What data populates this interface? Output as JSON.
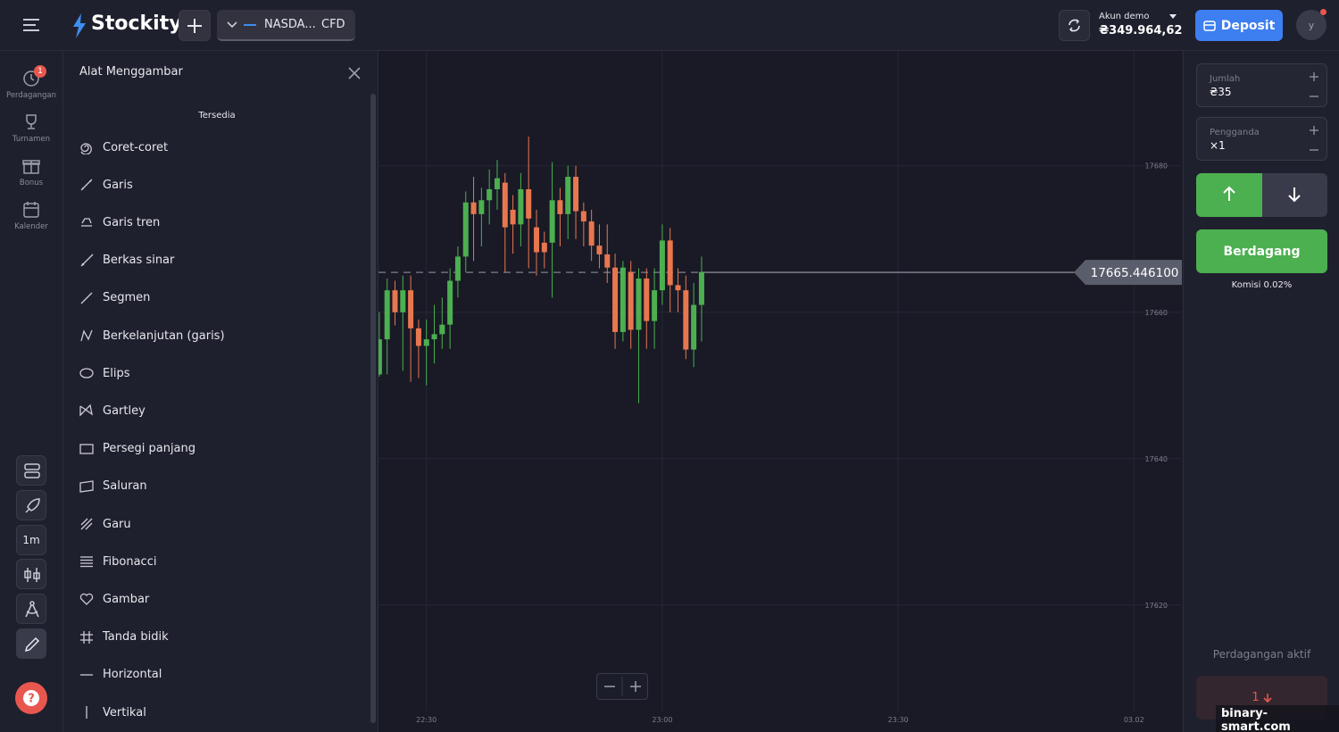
{
  "header": {
    "brand": "Stockity",
    "asset": "NASDA...",
    "asset_type": "CFD",
    "account_label": "Akun demo",
    "balance": "₴349.964,62",
    "deposit": "Deposit",
    "avatar": "y"
  },
  "sidebar": {
    "badge": "1",
    "items": [
      "Perdagangan",
      "Turnamen",
      "Bonus",
      "Kalender"
    ],
    "timeframe": "1m"
  },
  "tools_panel": {
    "title": "Alat Menggambar",
    "section": "Tersedia",
    "tools": [
      "Coret-coret",
      "Garis",
      "Garis tren",
      "Berkas sinar",
      "Segmen",
      "Berkelanjutan (garis)",
      "Elips",
      "Gartley",
      "Persegi panjang",
      "Saluran",
      "Garu",
      "Fibonacci",
      "Gambar",
      "Tanda bidik",
      "Horizontal",
      "Vertikal"
    ]
  },
  "chart_data": {
    "type": "candlestick",
    "up_color": "#4caf50",
    "down_color": "#e8774f",
    "ylim": [
      17602.9,
      17695.7
    ],
    "yticks": [
      17620,
      17640,
      17660,
      17680
    ],
    "xlim": [
      23.9,
      126.1
    ],
    "xticks": [
      {
        "value": 30,
        "label": "22:30"
      },
      {
        "value": 60,
        "label": "23:00"
      },
      {
        "value": 90,
        "label": "23:30"
      },
      {
        "value": 120,
        "label": "03.02"
      }
    ],
    "grid": true,
    "price": {
      "value": 17665.4461,
      "label": "17665.446100"
    },
    "candles": [
      {
        "x": 24,
        "o": 17651.5,
        "h": 17660,
        "l": 17651.2,
        "c": 17656.3
      },
      {
        "x": 25,
        "o": 17656.3,
        "h": 17664.6,
        "l": 17651.5,
        "c": 17663
      },
      {
        "x": 26,
        "o": 17663,
        "h": 17664.3,
        "l": 17658.2,
        "c": 17660
      },
      {
        "x": 27,
        "o": 17660,
        "h": 17665,
        "l": 17652,
        "c": 17663
      },
      {
        "x": 28,
        "o": 17663,
        "h": 17665,
        "l": 17650.5,
        "c": 17657.8
      },
      {
        "x": 29,
        "o": 17657.8,
        "h": 17659,
        "l": 17651,
        "c": 17655.4
      },
      {
        "x": 30,
        "o": 17655.4,
        "h": 17659,
        "l": 17650,
        "c": 17656.3
      },
      {
        "x": 31,
        "o": 17656.3,
        "h": 17661,
        "l": 17653,
        "c": 17657
      },
      {
        "x": 32,
        "o": 17657,
        "h": 17662,
        "l": 17655,
        "c": 17658.3
      },
      {
        "x": 33,
        "o": 17658.3,
        "h": 17666,
        "l": 17655,
        "c": 17664.3
      },
      {
        "x": 34,
        "o": 17664.3,
        "h": 17669,
        "l": 17662,
        "c": 17667.6
      },
      {
        "x": 35,
        "o": 17667.6,
        "h": 17676.5,
        "l": 17665.5,
        "c": 17675
      },
      {
        "x": 36,
        "o": 17675,
        "h": 17678.5,
        "l": 17667,
        "c": 17673.4
      },
      {
        "x": 37,
        "o": 17673.4,
        "h": 17677,
        "l": 17669,
        "c": 17675.3
      },
      {
        "x": 38,
        "o": 17675.3,
        "h": 17679.5,
        "l": 17672,
        "c": 17676.8
      },
      {
        "x": 39,
        "o": 17676.8,
        "h": 17680.8,
        "l": 17674,
        "c": 17678.3
      },
      {
        "x": 40,
        "o": 17677.7,
        "h": 17679,
        "l": 17665.5,
        "c": 17671.6
      },
      {
        "x": 41,
        "o": 17674,
        "h": 17676,
        "l": 17668,
        "c": 17672
      },
      {
        "x": 42,
        "o": 17672,
        "h": 17679,
        "l": 17669,
        "c": 17676.8
      },
      {
        "x": 43,
        "o": 17676.8,
        "h": 17684,
        "l": 17666,
        "c": 17672.8
      },
      {
        "x": 44,
        "o": 17671.6,
        "h": 17674,
        "l": 17665,
        "c": 17668.2
      },
      {
        "x": 45,
        "o": 17669.5,
        "h": 17671,
        "l": 17666,
        "c": 17668.2
      },
      {
        "x": 46,
        "o": 17669.5,
        "h": 17680.5,
        "l": 17662,
        "c": 17675.3
      },
      {
        "x": 47,
        "o": 17675.3,
        "h": 17677,
        "l": 17669,
        "c": 17673.4
      },
      {
        "x": 48,
        "o": 17673.4,
        "h": 17680,
        "l": 17670,
        "c": 17678.5
      },
      {
        "x": 49,
        "o": 17678.5,
        "h": 17680,
        "l": 17670,
        "c": 17673.8
      },
      {
        "x": 50,
        "o": 17673.8,
        "h": 17675,
        "l": 17669,
        "c": 17672.4
      },
      {
        "x": 51,
        "o": 17672.4,
        "h": 17674,
        "l": 17667,
        "c": 17669.1
      },
      {
        "x": 52,
        "o": 17669.1,
        "h": 17672,
        "l": 17666,
        "c": 17667.9
      },
      {
        "x": 53,
        "o": 17667.9,
        "h": 17672,
        "l": 17664,
        "c": 17666.1
      },
      {
        "x": 54,
        "o": 17666.1,
        "h": 17668,
        "l": 17655,
        "c": 17657.3
      },
      {
        "x": 55,
        "o": 17657.3,
        "h": 17667,
        "l": 17656,
        "c": 17666.1
      },
      {
        "x": 56,
        "o": 17665.5,
        "h": 17667,
        "l": 17655,
        "c": 17657.6
      },
      {
        "x": 57,
        "o": 17657.6,
        "h": 17666,
        "l": 17647.6,
        "c": 17664.6
      },
      {
        "x": 58,
        "o": 17664.6,
        "h": 17666,
        "l": 17655,
        "c": 17658.8
      },
      {
        "x": 59,
        "o": 17658.8,
        "h": 17666,
        "l": 17655,
        "c": 17663
      },
      {
        "x": 60,
        "o": 17663,
        "h": 17672,
        "l": 17661,
        "c": 17669.8
      },
      {
        "x": 61,
        "o": 17669.8,
        "h": 17671.5,
        "l": 17660,
        "c": 17663.7
      },
      {
        "x": 62,
        "o": 17663.7,
        "h": 17666,
        "l": 17660,
        "c": 17663
      },
      {
        "x": 63,
        "o": 17663,
        "h": 17665,
        "l": 17653.6,
        "c": 17654.9
      },
      {
        "x": 64,
        "o": 17654.9,
        "h": 17664,
        "l": 17652.5,
        "c": 17661
      },
      {
        "x": 65,
        "o": 17661,
        "h": 17667.6,
        "l": 17656,
        "c": 17665.5
      }
    ]
  },
  "trade_panel": {
    "amount_label": "Jumlah",
    "amount": "₴35",
    "multiplier_label": "Pengganda",
    "multiplier": "×1",
    "trade_button": "Berdagang",
    "commission": "Komisi 0.02%",
    "active_label": "Perdagangan aktif",
    "active_count": "1"
  },
  "watermark": "binary-smart.com"
}
